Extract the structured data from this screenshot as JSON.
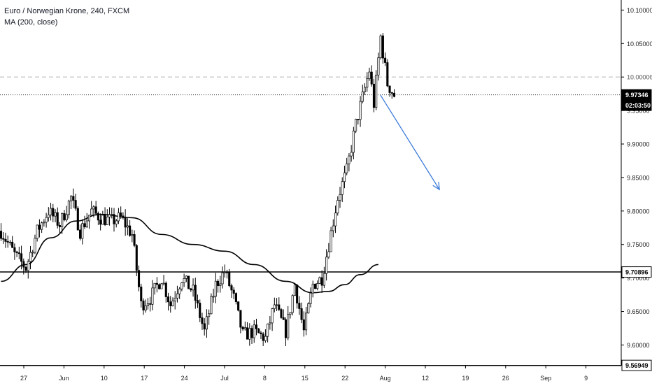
{
  "legend": {
    "title": "Euro / Norwegian Krone, 240, FXCM",
    "indicator": "MA (200, close)"
  },
  "chart_data": {
    "type": "candlestick",
    "symbol": "Euro / Norwegian Krone",
    "interval": "240",
    "source": "FXCM",
    "ylim": [
      9.565,
      10.115
    ],
    "y_ticks": [
      "10.10000",
      "10.05000",
      "10.00000",
      "9.95000",
      "9.90000",
      "9.85000",
      "9.80000",
      "9.75000",
      "9.70000",
      "9.65000",
      "9.60000"
    ],
    "x_tick_labels": [
      "27",
      "Jun",
      "10",
      "17",
      "24",
      "Jul",
      "8",
      "15",
      "22",
      "Aug",
      "12",
      "19",
      "26",
      "Sep",
      "9"
    ],
    "price_levels": {
      "last_price": "9.97346",
      "countdown": "02:03:50",
      "dashed_level": "10.00006",
      "support_1": "9.70896",
      "support_2": "9.56949"
    },
    "close_anchors": [
      [
        0,
        9.77
      ],
      [
        6,
        9.735
      ],
      [
        11,
        9.715
      ],
      [
        16,
        9.77
      ],
      [
        21,
        9.8
      ],
      [
        26,
        9.78
      ],
      [
        31,
        9.82
      ],
      [
        35,
        9.77
      ],
      [
        40,
        9.8
      ],
      [
        44,
        9.79
      ],
      [
        49,
        9.785
      ],
      [
        53,
        9.79
      ],
      [
        58,
        9.765
      ],
      [
        62,
        9.66
      ],
      [
        66,
        9.67
      ],
      [
        71,
        9.7
      ],
      [
        75,
        9.66
      ],
      [
        80,
        9.7
      ],
      [
        85,
        9.68
      ],
      [
        90,
        9.62
      ],
      [
        95,
        9.69
      ],
      [
        99,
        9.71
      ],
      [
        103,
        9.67
      ],
      [
        107,
        9.615
      ],
      [
        112,
        9.62
      ],
      [
        117,
        9.61
      ],
      [
        121,
        9.66
      ],
      [
        126,
        9.62
      ],
      [
        130,
        9.69
      ],
      [
        134,
        9.62
      ],
      [
        138,
        9.69
      ],
      [
        142,
        9.7
      ],
      [
        145,
        9.75
      ],
      [
        149,
        9.82
      ],
      [
        153,
        9.86
      ],
      [
        157,
        9.93
      ],
      [
        160,
        9.97
      ],
      [
        163,
        10.01
      ],
      [
        165,
        9.96
      ],
      [
        168,
        10.06
      ],
      [
        171,
        9.99
      ],
      [
        174,
        9.973
      ]
    ],
    "ma_200_anchors": [
      [
        0,
        9.695
      ],
      [
        11,
        9.72
      ],
      [
        22,
        9.76
      ],
      [
        33,
        9.785
      ],
      [
        44,
        9.795
      ],
      [
        58,
        9.79
      ],
      [
        71,
        9.765
      ],
      [
        85,
        9.75
      ],
      [
        99,
        9.74
      ],
      [
        112,
        9.72
      ],
      [
        126,
        9.695
      ],
      [
        138,
        9.678
      ],
      [
        145,
        9.68
      ],
      [
        152,
        9.69
      ],
      [
        159,
        9.705
      ],
      [
        167,
        9.72
      ]
    ],
    "forecast_arrow": {
      "from": [
        167,
        9.973
      ],
      "to": [
        194,
        9.832
      ]
    },
    "grid": false
  }
}
